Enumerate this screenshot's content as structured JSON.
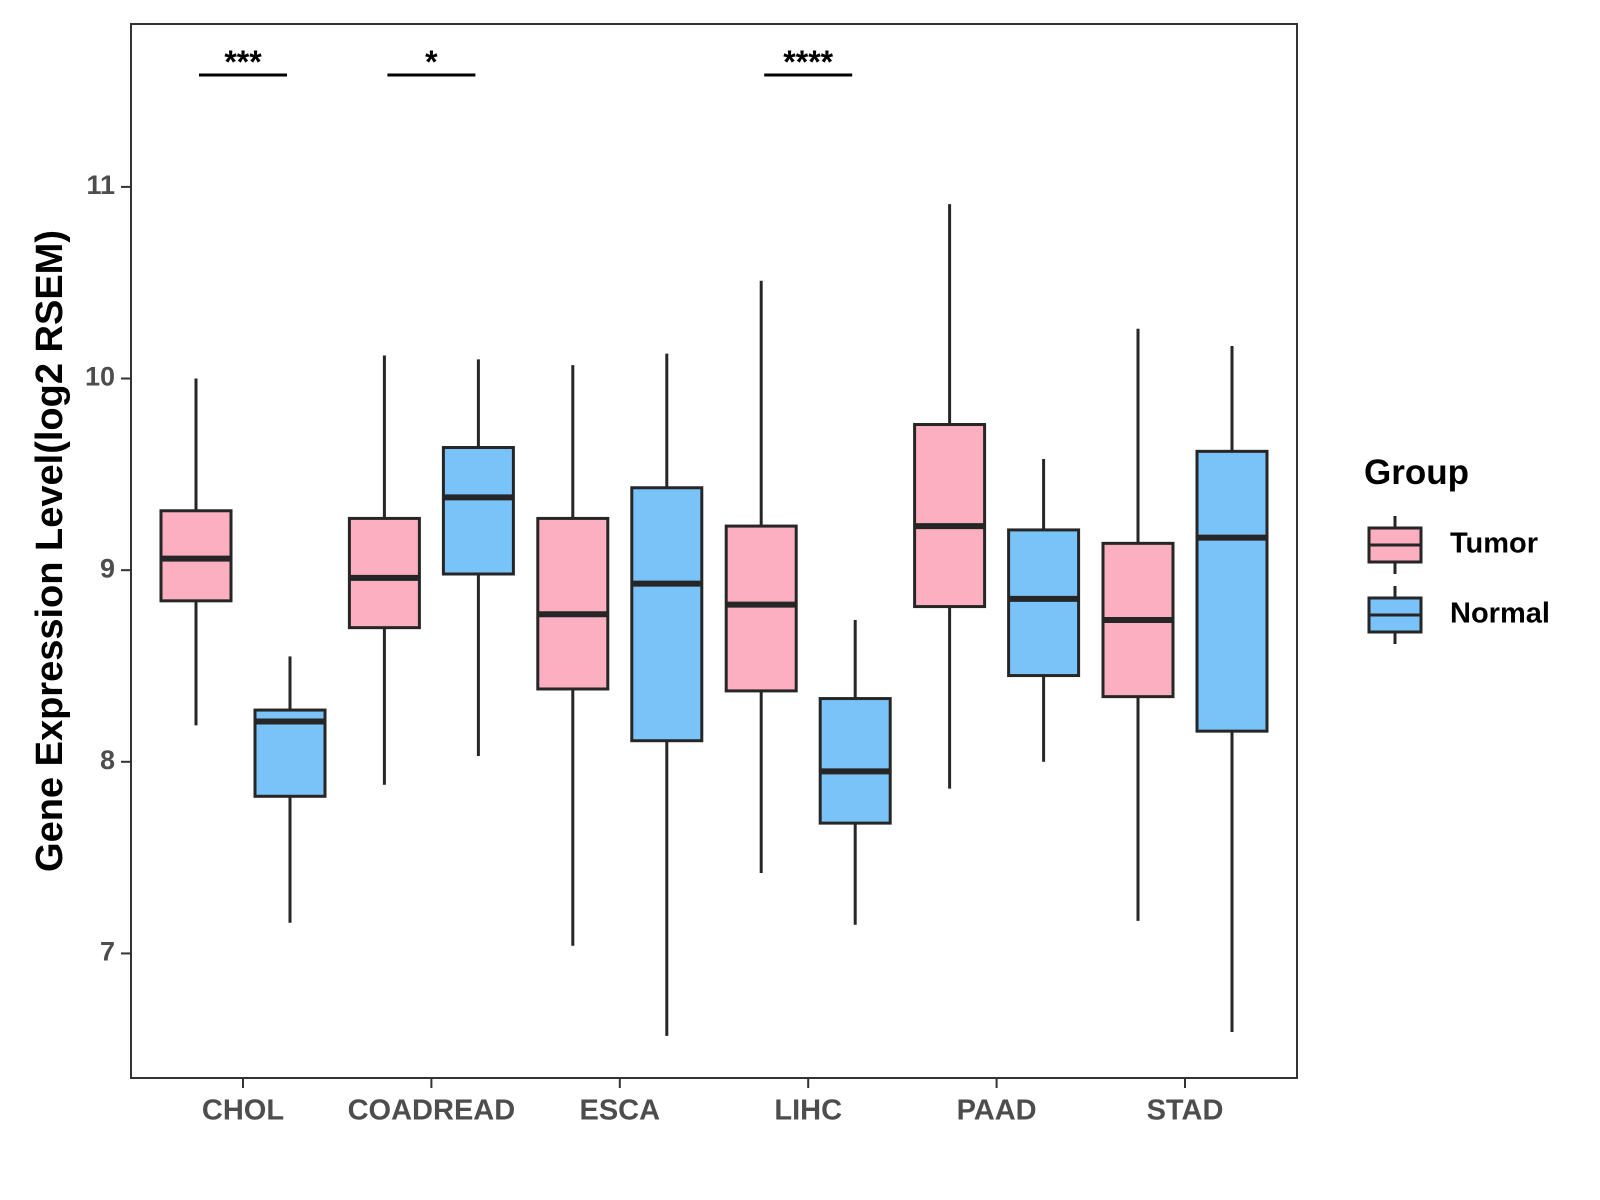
{
  "chart_data": {
    "type": "boxplot",
    "title": "",
    "xlabel": "",
    "ylabel": "Gene Expression Level(log2 RSEM)",
    "ylim": [
      6.35,
      11.85
    ],
    "yticks": [
      7,
      8,
      9,
      10,
      11
    ],
    "categories": [
      "CHOL",
      "COADREAD",
      "ESCA",
      "LIHC",
      "PAAD",
      "STAD"
    ],
    "legend": {
      "title": "Group",
      "position": "right",
      "entries": [
        "Tumor",
        "Normal"
      ]
    },
    "series": [
      {
        "name": "Tumor",
        "color": "#FBAFC0",
        "boxes": [
          {
            "category": "CHOL",
            "min": 8.19,
            "q1": 8.84,
            "median": 9.06,
            "q3": 9.31,
            "max": 10.0
          },
          {
            "category": "COADREAD",
            "min": 7.88,
            "q1": 8.7,
            "median": 8.96,
            "q3": 9.27,
            "max": 10.12
          },
          {
            "category": "ESCA",
            "min": 7.04,
            "q1": 8.38,
            "median": 8.77,
            "q3": 9.27,
            "max": 10.07
          },
          {
            "category": "LIHC",
            "min": 7.42,
            "q1": 8.37,
            "median": 8.82,
            "q3": 9.23,
            "max": 10.51
          },
          {
            "category": "PAAD",
            "min": 7.86,
            "q1": 8.81,
            "median": 9.23,
            "q3": 9.76,
            "max": 10.91
          },
          {
            "category": "STAD",
            "min": 7.17,
            "q1": 8.34,
            "median": 8.74,
            "q3": 9.14,
            "max": 10.26
          }
        ]
      },
      {
        "name": "Normal",
        "color": "#7AC3F8",
        "boxes": [
          {
            "category": "CHOL",
            "min": 7.16,
            "q1": 7.82,
            "median": 8.21,
            "q3": 8.27,
            "max": 8.55
          },
          {
            "category": "COADREAD",
            "min": 8.03,
            "q1": 8.98,
            "median": 9.38,
            "q3": 9.64,
            "max": 10.1
          },
          {
            "category": "ESCA",
            "min": 6.57,
            "q1": 8.11,
            "median": 8.93,
            "q3": 9.43,
            "max": 10.13
          },
          {
            "category": "LIHC",
            "min": 7.15,
            "q1": 7.68,
            "median": 7.95,
            "q3": 8.33,
            "max": 8.74
          },
          {
            "category": "PAAD",
            "min": 8.0,
            "q1": 8.45,
            "median": 8.85,
            "q3": 9.21,
            "max": 9.58
          },
          {
            "category": "STAD",
            "min": 6.59,
            "q1": 8.16,
            "median": 9.17,
            "q3": 9.62,
            "max": 10.17
          }
        ]
      }
    ],
    "significance": [
      {
        "category": "CHOL",
        "label": "***"
      },
      {
        "category": "COADREAD",
        "label": "*"
      },
      {
        "category": "LIHC",
        "label": "****"
      }
    ]
  }
}
